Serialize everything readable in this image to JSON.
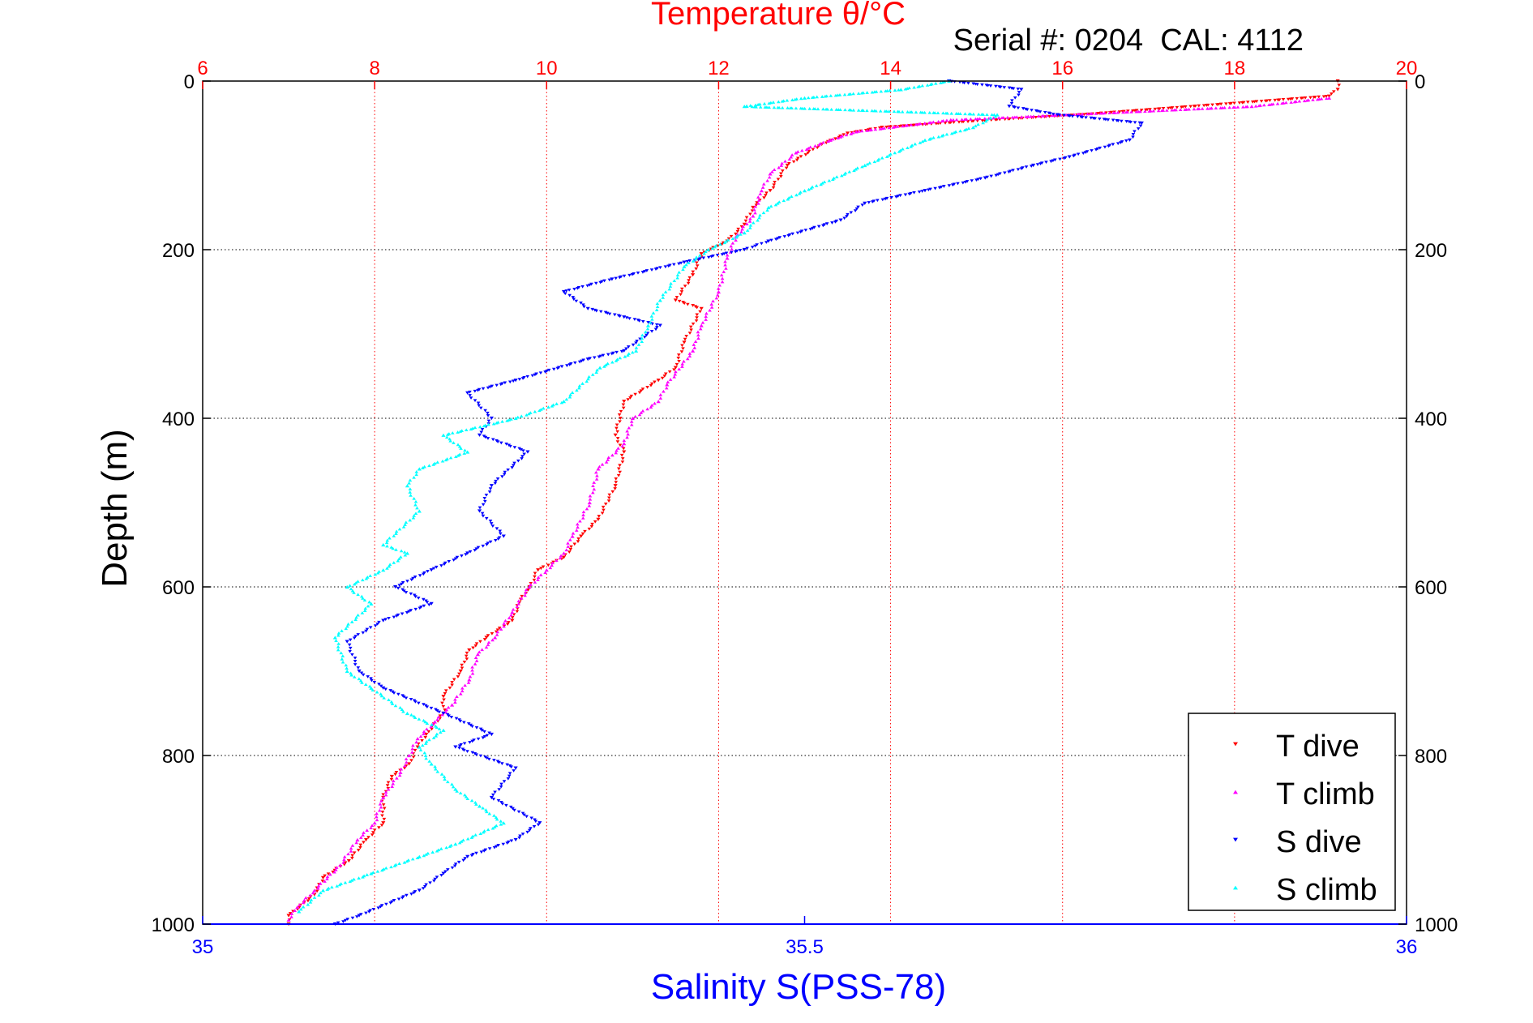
{
  "chart_data": {
    "type": "scatter",
    "top_axis": {
      "label": "Temperature θ/°C",
      "range": [
        6,
        20
      ],
      "ticks": [
        "6",
        "8",
        "10",
        "12",
        "14",
        "16",
        "18",
        "20"
      ],
      "color": "#ff0000"
    },
    "bottom_axis": {
      "label": "Salinity S(PSS-78)",
      "range": [
        35,
        36
      ],
      "ticks": [
        "35",
        "35.5",
        "36"
      ],
      "color": "#0000ff"
    },
    "y_axis": {
      "label": "Depth (m)",
      "range": [
        0,
        1000
      ],
      "reversed": true,
      "ticks": [
        "0",
        "200",
        "400",
        "600",
        "800",
        "1000"
      ]
    },
    "annotation": "Serial #: 0204  CAL: 4112",
    "grid": true,
    "legend_position": "bottom-right",
    "series": [
      {
        "name": "T dive",
        "axis": "top",
        "color": "#ff0000",
        "marker": "triangle-down",
        "points": [
          [
            19.2,
            0
          ],
          [
            19.2,
            10
          ],
          [
            19.1,
            18
          ],
          [
            16.2,
            40
          ],
          [
            14.9,
            48
          ],
          [
            13.9,
            55
          ],
          [
            13.5,
            62
          ],
          [
            13.2,
            75
          ],
          [
            12.8,
            100
          ],
          [
            12.6,
            130
          ],
          [
            12.4,
            150
          ],
          [
            12.3,
            170
          ],
          [
            12.1,
            190
          ],
          [
            11.8,
            205
          ],
          [
            11.7,
            230
          ],
          [
            11.5,
            260
          ],
          [
            11.8,
            270
          ],
          [
            11.6,
            310
          ],
          [
            11.5,
            340
          ],
          [
            11.3,
            355
          ],
          [
            10.9,
            380
          ],
          [
            10.8,
            420
          ],
          [
            10.9,
            440
          ],
          [
            10.8,
            480
          ],
          [
            10.6,
            520
          ],
          [
            10.4,
            540
          ],
          [
            10.2,
            565
          ],
          [
            9.9,
            580
          ],
          [
            9.8,
            600
          ],
          [
            9.7,
            615
          ],
          [
            9.6,
            640
          ],
          [
            9.3,
            660
          ],
          [
            9.1,
            675
          ],
          [
            9.0,
            700
          ],
          [
            8.8,
            730
          ],
          [
            8.8,
            750
          ],
          [
            8.6,
            775
          ],
          [
            8.5,
            790
          ],
          [
            8.4,
            810
          ],
          [
            8.2,
            825
          ],
          [
            8.1,
            850
          ],
          [
            8.1,
            880
          ],
          [
            7.9,
            900
          ],
          [
            7.7,
            925
          ],
          [
            7.4,
            945
          ],
          [
            7.3,
            965
          ],
          [
            7.0,
            990
          ],
          [
            7.0,
            1000
          ]
        ]
      },
      {
        "name": "T climb",
        "axis": "top",
        "color": "#ff00ff",
        "marker": "triangle-up",
        "points": [
          [
            19.1,
            20
          ],
          [
            18.2,
            30
          ],
          [
            15.6,
            42
          ],
          [
            14.7,
            46
          ],
          [
            13.6,
            60
          ],
          [
            13.3,
            70
          ],
          [
            12.9,
            85
          ],
          [
            12.6,
            110
          ],
          [
            12.5,
            130
          ],
          [
            12.4,
            160
          ],
          [
            12.2,
            185
          ],
          [
            12.1,
            210
          ],
          [
            12.0,
            250
          ],
          [
            11.8,
            290
          ],
          [
            11.7,
            320
          ],
          [
            11.4,
            360
          ],
          [
            11.3,
            380
          ],
          [
            11.0,
            400
          ],
          [
            10.9,
            430
          ],
          [
            10.6,
            460
          ],
          [
            10.5,
            500
          ],
          [
            10.3,
            540
          ],
          [
            10.2,
            560
          ],
          [
            10.0,
            580
          ],
          [
            9.8,
            600
          ],
          [
            9.6,
            630
          ],
          [
            9.4,
            660
          ],
          [
            9.2,
            680
          ],
          [
            9.1,
            710
          ],
          [
            8.9,
            740
          ],
          [
            8.7,
            760
          ],
          [
            8.5,
            780
          ],
          [
            8.4,
            800
          ],
          [
            8.3,
            820
          ],
          [
            8.1,
            850
          ],
          [
            8.0,
            880
          ],
          [
            7.8,
            900
          ],
          [
            7.6,
            930
          ],
          [
            7.3,
            960
          ],
          [
            7.1,
            980
          ],
          [
            7.0,
            995
          ]
        ]
      },
      {
        "name": "S dive",
        "axis": "bottom",
        "color": "#0000ff",
        "marker": "triangle-down",
        "points": [
          [
            35.62,
            0
          ],
          [
            35.68,
            10
          ],
          [
            35.67,
            30
          ],
          [
            35.71,
            40
          ],
          [
            35.78,
            50
          ],
          [
            35.77,
            70
          ],
          [
            35.72,
            90
          ],
          [
            35.69,
            100
          ],
          [
            35.65,
            115
          ],
          [
            35.6,
            130
          ],
          [
            35.55,
            145
          ],
          [
            35.53,
            165
          ],
          [
            35.47,
            190
          ],
          [
            35.45,
            200
          ],
          [
            35.4,
            215
          ],
          [
            35.34,
            235
          ],
          [
            35.3,
            250
          ],
          [
            35.32,
            270
          ],
          [
            35.35,
            280
          ],
          [
            35.38,
            290
          ],
          [
            35.35,
            320
          ],
          [
            35.32,
            330
          ],
          [
            35.26,
            355
          ],
          [
            35.22,
            370
          ],
          [
            35.24,
            400
          ],
          [
            35.23,
            420
          ],
          [
            35.27,
            440
          ],
          [
            35.24,
            480
          ],
          [
            35.23,
            510
          ],
          [
            35.25,
            540
          ],
          [
            35.22,
            560
          ],
          [
            35.19,
            580
          ],
          [
            35.16,
            600
          ],
          [
            35.19,
            620
          ],
          [
            35.15,
            640
          ],
          [
            35.12,
            665
          ],
          [
            35.13,
            700
          ],
          [
            35.15,
            720
          ],
          [
            35.2,
            750
          ],
          [
            35.24,
            775
          ],
          [
            35.21,
            790
          ],
          [
            35.26,
            815
          ],
          [
            35.24,
            850
          ],
          [
            35.28,
            880
          ],
          [
            35.26,
            900
          ],
          [
            35.22,
            920
          ],
          [
            35.2,
            940
          ],
          [
            35.18,
            960
          ],
          [
            35.13,
            990
          ],
          [
            35.11,
            1000
          ]
        ]
      },
      {
        "name": "S climb",
        "axis": "bottom",
        "color": "#00ffff",
        "marker": "triangle-up",
        "points": [
          [
            35.62,
            0
          ],
          [
            35.58,
            10
          ],
          [
            35.5,
            20
          ],
          [
            35.45,
            30
          ],
          [
            35.66,
            40
          ],
          [
            35.64,
            55
          ],
          [
            35.6,
            70
          ],
          [
            35.55,
            100
          ],
          [
            35.5,
            130
          ],
          [
            35.47,
            150
          ],
          [
            35.45,
            180
          ],
          [
            35.42,
            200
          ],
          [
            35.4,
            220
          ],
          [
            35.38,
            260
          ],
          [
            35.37,
            290
          ],
          [
            35.36,
            320
          ],
          [
            35.33,
            340
          ],
          [
            35.3,
            380
          ],
          [
            35.26,
            400
          ],
          [
            35.2,
            420
          ],
          [
            35.22,
            440
          ],
          [
            35.18,
            460
          ],
          [
            35.17,
            480
          ],
          [
            35.18,
            510
          ],
          [
            35.15,
            550
          ],
          [
            35.17,
            560
          ],
          [
            35.15,
            580
          ],
          [
            35.12,
            600
          ],
          [
            35.14,
            620
          ],
          [
            35.11,
            660
          ],
          [
            35.12,
            700
          ],
          [
            35.14,
            720
          ],
          [
            35.17,
            750
          ],
          [
            35.2,
            770
          ],
          [
            35.18,
            790
          ],
          [
            35.19,
            810
          ],
          [
            35.21,
            840
          ],
          [
            35.23,
            860
          ],
          [
            35.25,
            880
          ],
          [
            35.21,
            905
          ],
          [
            35.18,
            920
          ],
          [
            35.14,
            940
          ],
          [
            35.1,
            960
          ],
          [
            35.08,
            985
          ]
        ]
      }
    ]
  }
}
